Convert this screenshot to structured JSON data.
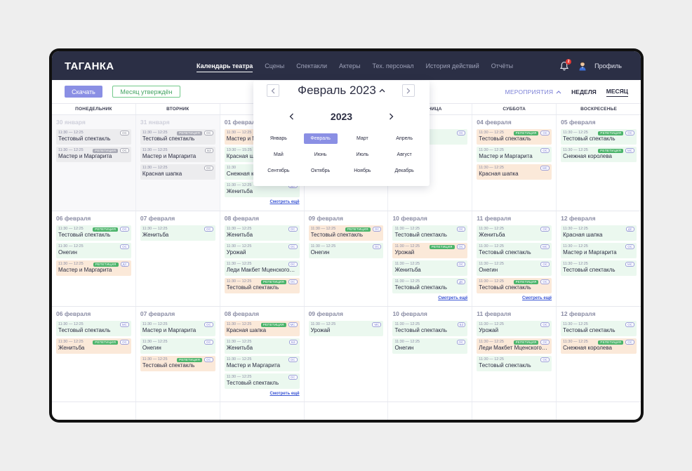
{
  "header": {
    "logo": "ТАГАНКА",
    "nav": [
      "Календарь театра",
      "Сцены",
      "Спектакли",
      "Актеры",
      "Тех. персонал",
      "История действий",
      "Отчёты"
    ],
    "active_nav": 0,
    "bell_count": "2",
    "profile_label": "Профиль"
  },
  "toolbar": {
    "download_label": "Скачать",
    "approved_label": "Месяц утверждён",
    "events_label": "МЕРОПРИЯТИЯ",
    "week_label": "НЕДЕЛЯ",
    "month_label": "МЕСЯЦ"
  },
  "weekdays": [
    "ПОНЕДЕЛЬНИК",
    "ВТОРНИК",
    "СРЕДА",
    "ЧЕТВЕРГ",
    "ПЯТНИЦА",
    "СУББОТА",
    "ВОСКРЕСЕНЬЕ"
  ],
  "picker": {
    "title": "Февраль 2023",
    "year": "2023",
    "months": [
      "Январь",
      "Февраль",
      "Март",
      "Апрель",
      "Май",
      "Июнь",
      "Июль",
      "Авгуcт",
      "Сентябрь",
      "Октябрь",
      "Ноябрь",
      "Декабрь"
    ],
    "selected": 1
  },
  "rehearsal_label": "РЕПЕТИЦИЯ",
  "more_label": "Смотреть ещё",
  "weeks": [
    {
      "height": 137,
      "days": [
        {
          "date": "30 января",
          "muted": true,
          "events": [
            {
              "time": "11:30 — 12:25",
              "title": "Тестовый спектакль",
              "color": "gray",
              "code": "ОС"
            },
            {
              "time": "11:30 — 12:25",
              "title": "Мастер и Маргарита",
              "color": "gray",
              "rehearsal": true,
              "code": "ОС"
            }
          ]
        },
        {
          "date": "31 января",
          "muted": true,
          "events": [
            {
              "time": "11:30 — 12:25",
              "title": "Тестовый спектакль",
              "color": "gray",
              "rehearsal": true,
              "code": "ОС"
            },
            {
              "time": "11:30 — 12:25",
              "title": "Мастер и Маргарита",
              "color": "gray",
              "code": "БЗ"
            },
            {
              "time": "11:30 — 12:25",
              "title": "Красная шапка",
              "color": "gray",
              "code": "ОС"
            }
          ]
        },
        {
          "date": "01 февраля",
          "events": [
            {
              "time": "11:30 — 12:25",
              "title": "Мастер и Маргарита",
              "color": "orange",
              "code": "ОС"
            },
            {
              "time": "13:30 — 15:25",
              "title": "Красная шапка",
              "color": "green",
              "code": "ОС"
            },
            {
              "time": "11:30",
              "title": "Снежная королева",
              "color": "green",
              "code": "ОС"
            },
            {
              "time": "11:30 — 12:25",
              "title": "Женитьба",
              "color": "green",
              "code": "ДС"
            }
          ],
          "more": true
        },
        {
          "date": "",
          "events": []
        },
        {
          "date": "",
          "events": [
            {
              "time": "",
              "title": "",
              "color": "green",
              "code": "ОС"
            }
          ]
        },
        {
          "date": "04 февраля",
          "events": [
            {
              "time": "11:30 — 12:25",
              "title": "Тестовый спектакль",
              "color": "orange",
              "rehearsal": true,
              "code": "ОС"
            },
            {
              "time": "11:30 — 12:25",
              "title": "Мастер и Маргарита",
              "color": "green",
              "code": "ОС"
            },
            {
              "time": "11:30 — 12:25",
              "title": "Красная шапка",
              "color": "orange",
              "code": "МС"
            }
          ]
        },
        {
          "date": "05 февраля",
          "events": [
            {
              "time": "11:30 — 12:25",
              "title": "Тестовый спектакль",
              "color": "green",
              "rehearsal": true,
              "code": "ОС"
            },
            {
              "time": "11:30 — 12:25",
              "title": "Снежная королева",
              "color": "green",
              "rehearsal": true,
              "code": "МС"
            }
          ]
        }
      ]
    },
    {
      "height": 136,
      "days": [
        {
          "date": "06 февраля",
          "events": [
            {
              "time": "11:30 — 12:25",
              "title": "Тестовый спектакль",
              "color": "green",
              "rehearsal": true,
              "code": "ОС"
            },
            {
              "time": "11:30 — 12:25",
              "title": "Онегин",
              "color": "green",
              "code": "ОС"
            },
            {
              "time": "11:30 — 12:25",
              "title": "Мастер и Маргарита",
              "color": "orange",
              "rehearsal": true,
              "code": "ДС"
            }
          ]
        },
        {
          "date": "07 февраля",
          "events": [
            {
              "time": "11:30 — 12:25",
              "title": "Женитьба",
              "color": "green",
              "code": "ОС"
            }
          ]
        },
        {
          "date": "08 февраля",
          "events": [
            {
              "time": "11:30 — 12:25",
              "title": "Женитьба",
              "color": "green",
              "code": "ОС"
            },
            {
              "time": "11:30 — 12:25",
              "title": "Урожай",
              "color": "green",
              "code": "ОС"
            },
            {
              "time": "11:30 — 12:25",
              "title": "Леди Макбет Мценского уезда",
              "color": "green",
              "code": "ОС"
            },
            {
              "time": "11:30 — 12:25",
              "title": "Тестовый спектакль",
              "color": "orange",
              "rehearsal": true,
              "code": "ОС"
            }
          ]
        },
        {
          "date": "09 февраля",
          "events": [
            {
              "time": "11:30 — 12:25",
              "title": "Тестовый спектакль",
              "color": "orange",
              "rehearsal": true,
              "code": "ОС"
            },
            {
              "time": "11:30 — 12:25",
              "title": "Онегин",
              "color": "green",
              "code": "ОС"
            }
          ]
        },
        {
          "date": "10 февраля",
          "events": [
            {
              "time": "11:30 — 12:25",
              "title": "Тестовый спектакль",
              "color": "green",
              "code": "ОС"
            },
            {
              "time": "11:30 — 12:25",
              "title": "Урожай",
              "color": "orange",
              "rehearsal": true,
              "code": "ОС"
            },
            {
              "time": "11:30 — 12:25",
              "title": "Женитьба",
              "color": "green",
              "code": "ОС"
            },
            {
              "time": "11:30 — 12:25",
              "title": "Тестовый спектакль",
              "color": "green",
              "code": "ДС"
            }
          ],
          "more": true
        },
        {
          "date": "11 февраля",
          "events": [
            {
              "time": "11:30 — 12:25",
              "title": "Женитьба",
              "color": "green",
              "code": "ОС"
            },
            {
              "time": "11:30 — 12:25",
              "title": "Тестовый спектакль",
              "color": "green",
              "code": "МС"
            },
            {
              "time": "11:30 — 12:25",
              "title": "Онегин",
              "color": "green",
              "code": "ОС"
            },
            {
              "time": "11:30 — 12:25",
              "title": "Тестовый спектакль",
              "color": "orange",
              "rehearsal": true,
              "code": "ОС"
            }
          ],
          "more": true
        },
        {
          "date": "12 февраля",
          "events": [
            {
              "time": "11:30 — 12:25",
              "title": "Красная шапка",
              "color": "green",
              "code": "ДС"
            },
            {
              "time": "11:30 — 12:25",
              "title": "Мастер и Маргарита",
              "color": "green",
              "code": "ОС"
            },
            {
              "time": "11:30 — 12:25",
              "title": "Тестовый спектакль",
              "color": "green",
              "code": "МС"
            }
          ]
        }
      ]
    },
    {
      "height": 136,
      "days": [
        {
          "date": "06 февраля",
          "events": [
            {
              "time": "11:30 — 12:25",
              "title": "Тестовый спектакль",
              "color": "green",
              "code": "МС"
            },
            {
              "time": "11:30 — 12:25",
              "title": "Женитьба",
              "color": "orange",
              "rehearsal": true,
              "code": "ОС"
            }
          ]
        },
        {
          "date": "07 февраля",
          "events": [
            {
              "time": "11:30 — 12:25",
              "title": "Мастер и Маргарита",
              "color": "green",
              "code": "ОС"
            },
            {
              "time": "11:30 — 12:25",
              "title": "Онегин",
              "color": "green",
              "code": "ОС"
            },
            {
              "time": "11:30 — 12:25",
              "title": "Тестовый спектакль",
              "color": "orange",
              "rehearsal": true,
              "code": "ОС"
            }
          ]
        },
        {
          "date": "08 февраля",
          "events": [
            {
              "time": "11:30 — 12:25",
              "title": "Красная шапка",
              "color": "orange",
              "rehearsal": true,
              "code": "МС"
            },
            {
              "time": "11:30 — 12:25",
              "title": "Женитьба",
              "color": "green",
              "code": "БЗ"
            },
            {
              "time": "11:30 — 12:25",
              "title": "Мастер и Маргарита",
              "color": "green",
              "code": "ОС"
            },
            {
              "time": "11:30 — 12:25",
              "title": "Тестовый спектакль",
              "color": "green",
              "code": "ОС"
            }
          ],
          "more": true
        },
        {
          "date": "09 февраля",
          "events": [
            {
              "time": "11:30 — 12:25",
              "title": "Урожай",
              "color": "green",
              "code": "МС"
            }
          ]
        },
        {
          "date": "10 февраля",
          "events": [
            {
              "time": "11:30 — 12:25",
              "title": "Тестовый спектакль",
              "color": "green",
              "code": "БЗ"
            },
            {
              "time": "11:30 — 12:25",
              "title": "Онегин",
              "color": "green",
              "code": "ОС"
            }
          ]
        },
        {
          "date": "11 февраля",
          "events": [
            {
              "time": "11:30 — 12:25",
              "title": "Урожай",
              "color": "green",
              "code": "ОС"
            },
            {
              "time": "11:30 — 12:25",
              "title": "Леди Макбет Мценского уезда",
              "color": "orange",
              "rehearsal": true,
              "code": "ОС"
            },
            {
              "time": "11:30 — 12:25",
              "title": "Тестовый спектакль",
              "color": "green",
              "code": "ОС"
            }
          ]
        },
        {
          "date": "12 февраля",
          "events": [
            {
              "time": "11:30 — 12:25",
              "title": "Тестовый спектакль",
              "color": "green",
              "code": "ОС"
            },
            {
              "time": "11:30 — 12:25",
              "title": "Снежная королева",
              "color": "orange",
              "rehearsal": true,
              "code": "ОС"
            }
          ]
        }
      ]
    },
    {
      "height": 30,
      "days": [
        {
          "date": "",
          "events": []
        },
        {
          "date": "",
          "events": []
        },
        {
          "date": "",
          "events": []
        },
        {
          "date": "",
          "events": []
        },
        {
          "date": "",
          "events": []
        },
        {
          "date": "",
          "events": []
        },
        {
          "date": "",
          "events": []
        }
      ]
    }
  ]
}
